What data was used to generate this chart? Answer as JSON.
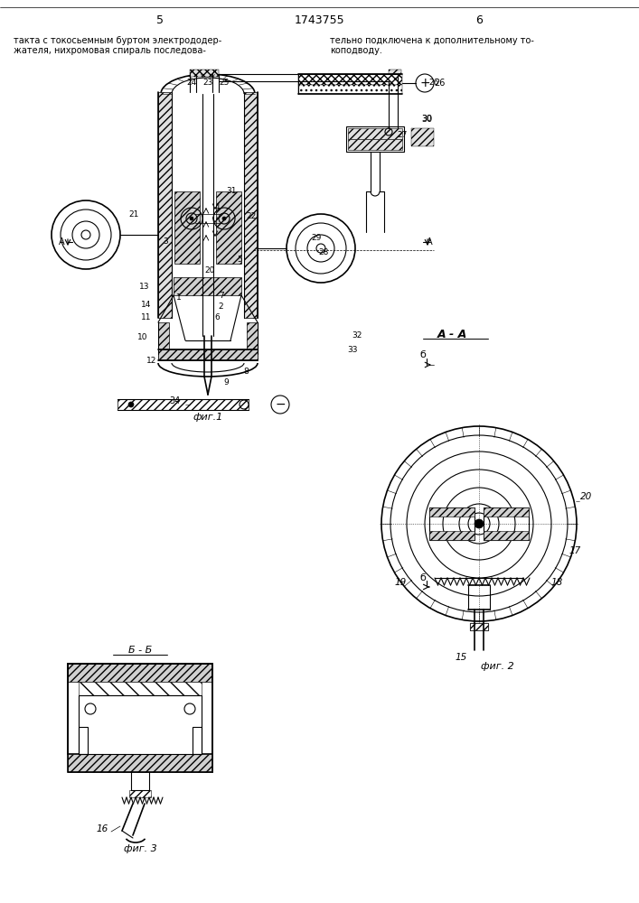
{
  "page_number_left": "5",
  "page_number_center": "1743755",
  "page_number_right": "6",
  "text_left_1": "такта с токосьемным буртом электрододер-",
  "text_left_2": "жателя, нихромовая спираль последова-",
  "text_right_1": "тельно подключена к дополнительному то-",
  "text_right_2": "коподводу.",
  "fig1_label": "фиг.1",
  "fig2_label": "фиг. 2",
  "fig3_label": "фиг. 3",
  "section_aa": "А - А",
  "section_bb": "Б - Б",
  "bg_color": "#ffffff"
}
